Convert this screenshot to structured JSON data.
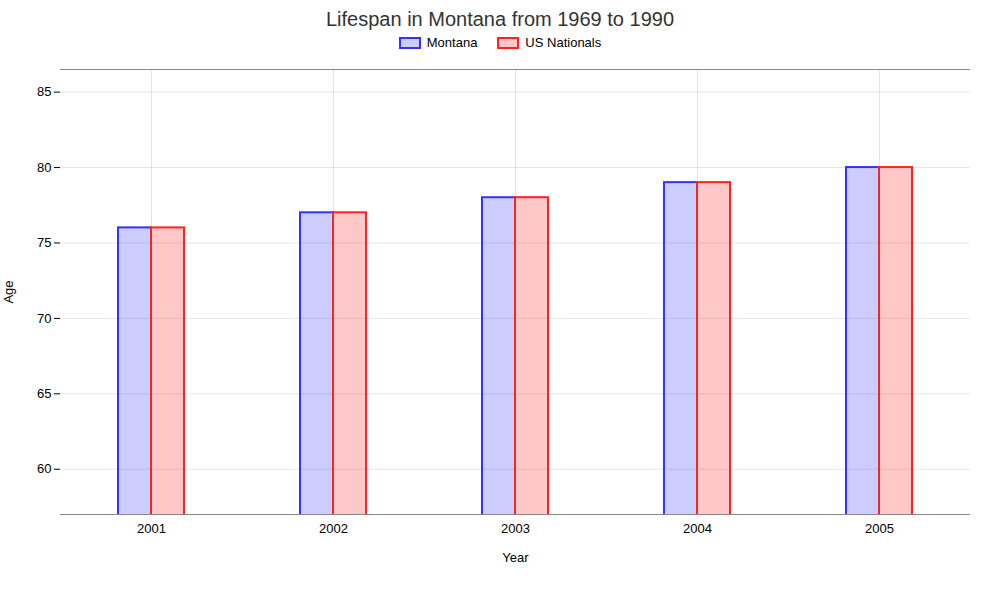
{
  "chart_data": {
    "type": "bar",
    "title": "Lifespan in Montana from 1969 to 1990",
    "xlabel": "Year",
    "ylabel": "Age",
    "categories": [
      "2001",
      "2002",
      "2003",
      "2004",
      "2005"
    ],
    "series": [
      {
        "name": "Montana",
        "color": "#3333ff",
        "values": [
          76,
          77,
          78,
          79,
          80
        ]
      },
      {
        "name": "US Nationals",
        "color": "#ff2222",
        "values": [
          76,
          77,
          78,
          79,
          80
        ]
      }
    ],
    "ylim": [
      57,
      86.5
    ],
    "yticks": [
      60,
      65,
      70,
      75,
      80,
      85
    ],
    "grid": true,
    "legend": "top"
  }
}
